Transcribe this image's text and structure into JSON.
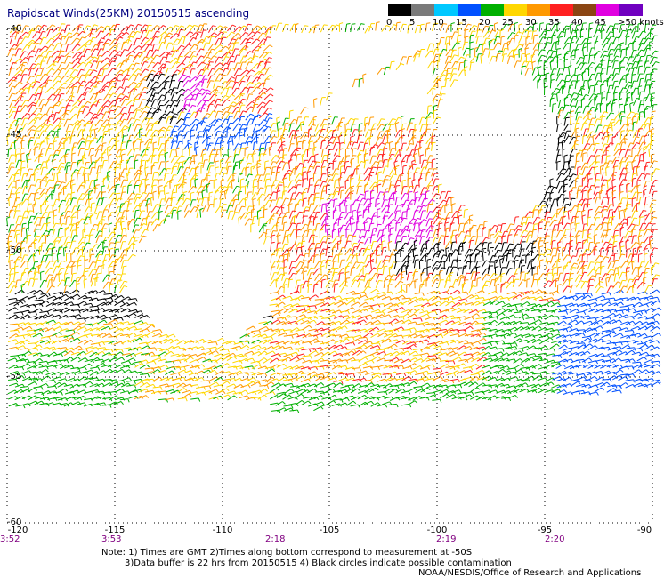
{
  "title": "Rapidscat Winds(25KM) 20150515 ascending",
  "legend": {
    "labels": [
      "0",
      "5",
      "10",
      "15",
      "20",
      "25",
      "30",
      "35",
      "40",
      "45",
      ">50 knots"
    ],
    "colors": [
      "#000000",
      "#7a7a7a",
      "#00c8ff",
      "#0050ff",
      "#00b000",
      "#ffd700",
      "#ff9900",
      "#ff2020",
      "#8b4513",
      "#e000e0",
      "#7000c0"
    ]
  },
  "axes": {
    "lat_ticks": [
      "-40",
      "-45",
      "-50",
      "-55",
      "-60"
    ],
    "lon_ticks": [
      "-120",
      "-115",
      "-110",
      "-105",
      "-100",
      "-95",
      "-90"
    ],
    "time_ticks": [
      "3:52",
      "3:53",
      "2:18",
      "2:19",
      "2:20"
    ]
  },
  "notes": {
    "line1": "Note: 1) Times are GMT 2)Times along bottom correspond to measurement at -50S",
    "line2": "3)Data buffer is 22 hrs from 20150515 4) Black circles indicate possible contamination",
    "credit": "NOAA/NESDIS/Office of Research and Applications"
  },
  "colors": {
    "grid": "#000000",
    "title": "#000080",
    "times": "#800080"
  }
}
